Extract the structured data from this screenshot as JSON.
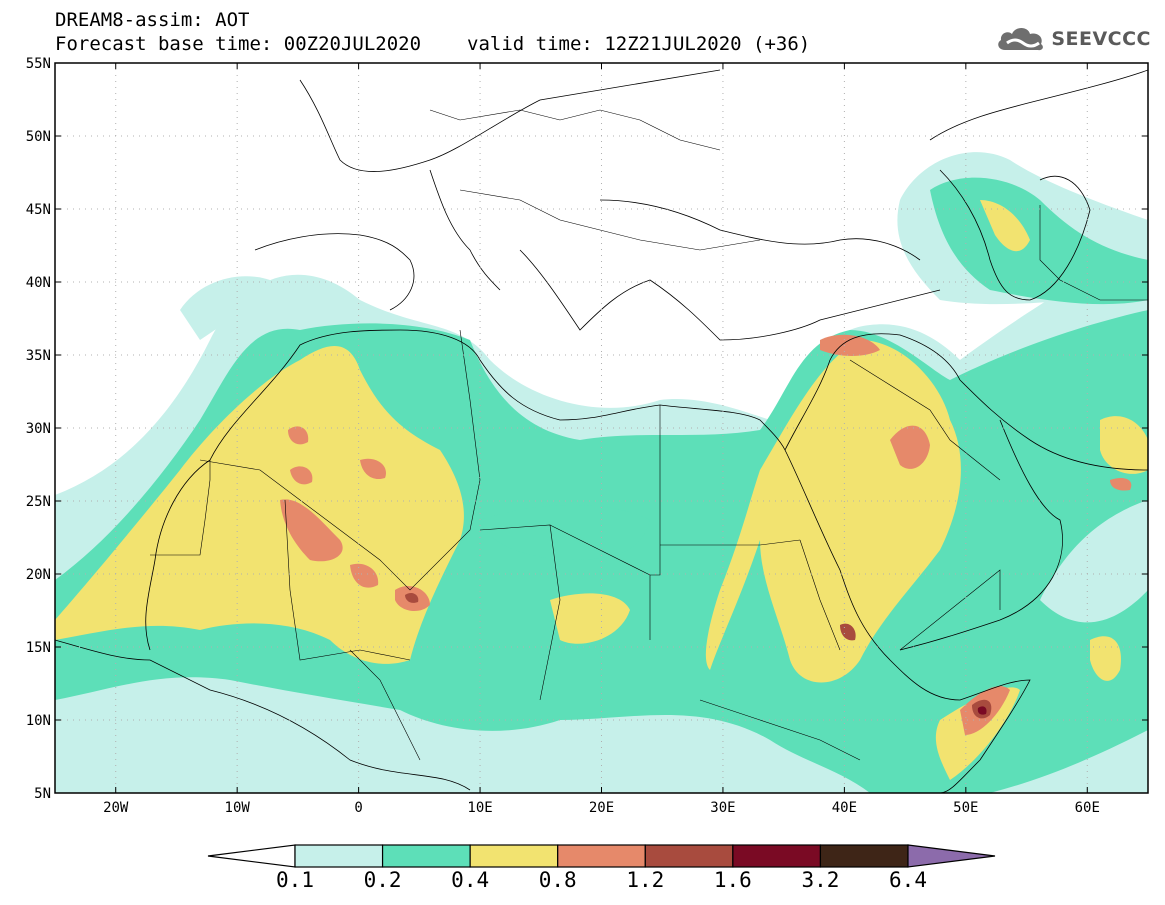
{
  "header": {
    "title_line1": "DREAM8-assim: AOT",
    "forecast_base": "Forecast base time: 00Z20JUL2020",
    "valid_time": "valid time: 12Z21JUL2020 (+36)"
  },
  "logo": {
    "text": "SEEVCCC",
    "icon": "cloud-icon"
  },
  "axes": {
    "lat_labels": [
      "55N",
      "50N",
      "45N",
      "40N",
      "35N",
      "30N",
      "25N",
      "20N",
      "15N",
      "10N",
      "5N"
    ],
    "lon_labels": [
      "20W",
      "10W",
      "0",
      "10E",
      "20E",
      "30E",
      "40E",
      "50E",
      "60E"
    ],
    "lat_range": [
      5,
      55
    ],
    "lon_range": [
      -25,
      65
    ],
    "grid": "dotted"
  },
  "colorbar": {
    "labels": [
      "0.1",
      "0.2",
      "0.4",
      "0.8",
      "1.2",
      "1.6",
      "3.2",
      "6.4"
    ],
    "colors": [
      "#c6f0ea",
      "#5ddfb8",
      "#f2e370",
      "#e6896a",
      "#a84b3e",
      "#7a0a24",
      "#3e2517",
      "#8c6bab"
    ]
  }
}
